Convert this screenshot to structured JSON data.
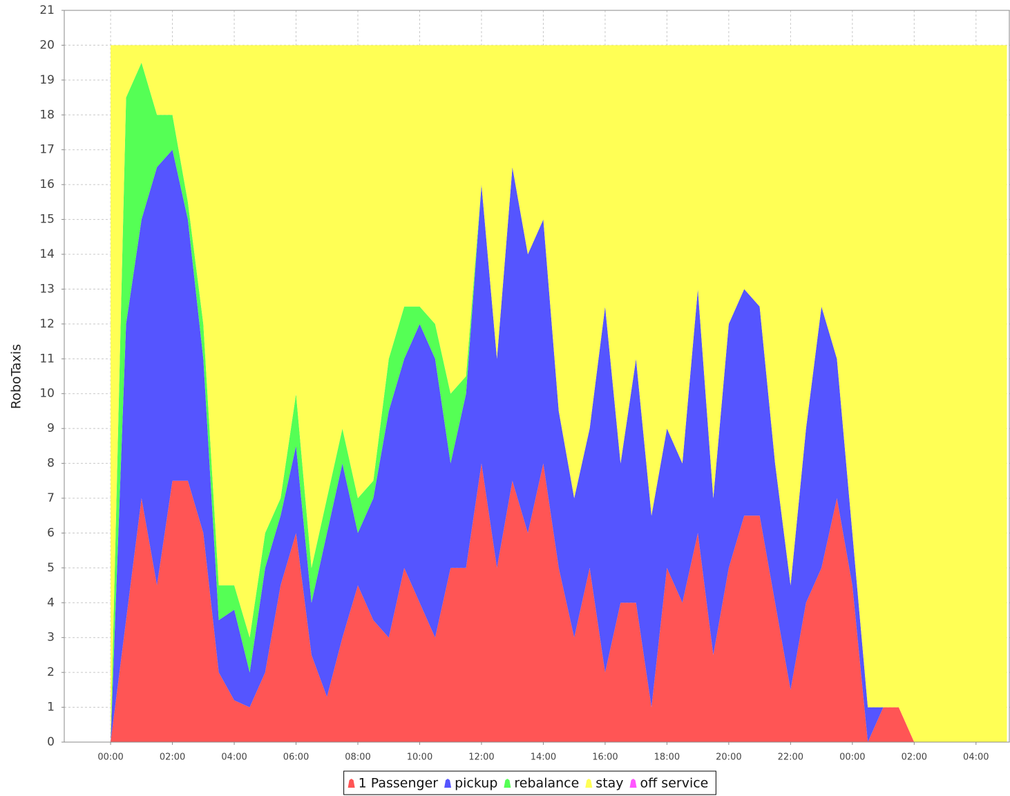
{
  "chart_data": {
    "type": "stacked_area",
    "y_label": "RoboTaxis",
    "x": [
      0,
      0.5,
      1,
      1.5,
      2,
      2.5,
      3,
      3.5,
      4,
      4.5,
      5,
      5.5,
      6,
      6.5,
      7,
      7.5,
      8,
      8.5,
      9,
      9.5,
      10,
      10.5,
      11,
      11.5,
      12,
      12.5,
      13,
      13.5,
      14,
      14.5,
      15,
      15.5,
      16,
      16.5,
      17,
      17.5,
      18,
      18.5,
      19,
      19.5,
      20,
      20.5,
      21,
      21.5,
      22,
      22.5,
      23,
      23.5,
      24,
      24.5,
      25,
      25.5,
      26,
      26.5,
      27,
      27.5,
      28,
      28.5,
      29
    ],
    "series": [
      {
        "name": "1 Passenger",
        "color": "#ff5555",
        "values": [
          0,
          3.5,
          7,
          4.5,
          7.5,
          7.5,
          6,
          2,
          1.2,
          1,
          2,
          4.5,
          6,
          2.5,
          1.3,
          3,
          4.5,
          3.5,
          3,
          5,
          4,
          3,
          5,
          5,
          8,
          5,
          7.5,
          6,
          8,
          5,
          3,
          5,
          2,
          4,
          4,
          1,
          5,
          4,
          6,
          2.5,
          5,
          6.5,
          6.5,
          4,
          1.5,
          4,
          5,
          7,
          4.5,
          0,
          1,
          1,
          0,
          0,
          0,
          0,
          0,
          0,
          0
        ]
      },
      {
        "name": "pickup",
        "color": "#5555ff",
        "values": [
          0,
          8.5,
          8,
          12,
          9.5,
          7.5,
          5,
          1.5,
          2.6,
          1,
          3,
          2,
          2.5,
          1.5,
          4.7,
          5,
          1.5,
          3.5,
          6.5,
          6,
          8,
          8,
          3,
          5,
          8,
          6,
          9,
          8,
          7,
          4.5,
          4,
          4,
          10.5,
          4,
          7,
          5.5,
          4,
          4,
          7,
          4.5,
          7,
          6.5,
          6,
          4,
          3,
          5,
          7.5,
          4,
          1.5,
          1,
          0,
          0,
          0,
          0,
          0,
          0,
          0,
          0,
          0
        ]
      },
      {
        "name": "rebalance",
        "color": "#55ff55",
        "values": [
          0,
          6.5,
          4.5,
          1.5,
          1,
          0.5,
          1,
          1,
          0.7,
          1,
          1,
          0.5,
          1.5,
          1,
          1,
          1,
          1,
          0.5,
          1.5,
          1.5,
          0.5,
          1,
          2,
          0.5,
          0,
          0,
          0,
          0,
          0,
          0,
          0,
          0,
          0,
          0,
          0,
          0,
          0,
          0,
          0,
          0,
          0,
          0,
          0,
          0,
          0,
          0,
          0,
          0,
          0,
          0,
          0,
          0,
          0,
          0,
          0,
          0,
          0,
          0,
          0
        ]
      },
      {
        "name": "stay",
        "color": "#ffff55",
        "values": [
          20,
          1.5,
          0.5,
          2,
          2,
          4.5,
          8,
          15.5,
          15.5,
          17,
          14,
          13,
          10,
          15,
          13,
          11,
          13,
          12.5,
          9,
          7.5,
          7.5,
          8,
          10,
          9.5,
          4,
          9,
          3.5,
          6,
          5,
          10.5,
          13,
          11,
          7.5,
          12,
          9,
          13.5,
          11,
          12,
          7,
          13,
          8,
          7,
          7.5,
          12,
          15.5,
          11,
          7.5,
          9,
          14,
          19,
          19,
          19,
          20,
          20,
          20,
          20,
          20,
          20,
          20
        ]
      },
      {
        "name": "off service",
        "color": "#ff55ff",
        "values": [
          0,
          0,
          0,
          0,
          0,
          0,
          0,
          0,
          0,
          0,
          0,
          0,
          0,
          0,
          0,
          0,
          0,
          0,
          0,
          0,
          0,
          0,
          0,
          0,
          0,
          0,
          0,
          0,
          0,
          0,
          0,
          0,
          0,
          0,
          0,
          0,
          0,
          0,
          0,
          0,
          0,
          0,
          0,
          0,
          0,
          0,
          0,
          0,
          0,
          0,
          0,
          0,
          0,
          0,
          0,
          0,
          0,
          0,
          0
        ]
      }
    ],
    "xlim": [
      -1.5,
      29.1
    ],
    "xticks": [
      {
        "value": 0,
        "label": "00:00"
      },
      {
        "value": 2,
        "label": "02:00"
      },
      {
        "value": 4,
        "label": "04:00"
      },
      {
        "value": 6,
        "label": "06:00"
      },
      {
        "value": 8,
        "label": "08:00"
      },
      {
        "value": 10,
        "label": "10:00"
      },
      {
        "value": 12,
        "label": "12:00"
      },
      {
        "value": 14,
        "label": "14:00"
      },
      {
        "value": 16,
        "label": "16:00"
      },
      {
        "value": 18,
        "label": "18:00"
      },
      {
        "value": 20,
        "label": "20:00"
      },
      {
        "value": 22,
        "label": "22:00"
      },
      {
        "value": 24,
        "label": "00:00"
      },
      {
        "value": 26,
        "label": "02:00"
      },
      {
        "value": 28,
        "label": "04:00"
      }
    ],
    "ylim": [
      0,
      21
    ],
    "yticks": [
      0,
      1,
      2,
      3,
      4,
      5,
      6,
      7,
      8,
      9,
      10,
      11,
      12,
      13,
      14,
      15,
      16,
      17,
      18,
      19,
      20,
      21
    ],
    "grid": true,
    "legend": "bottom"
  }
}
